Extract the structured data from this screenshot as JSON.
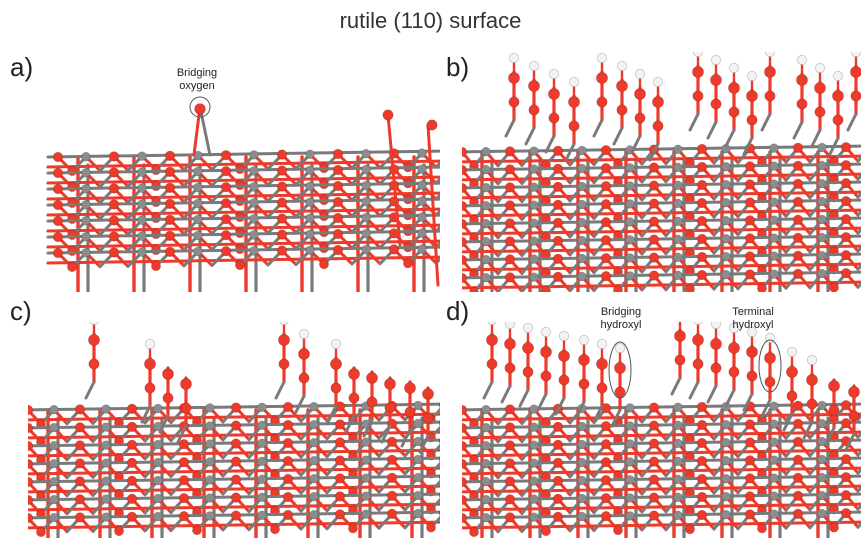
{
  "title": "rutile (110) surface",
  "panels": [
    {
      "label": "a)",
      "variant": "bare"
    },
    {
      "label": "b)",
      "variant": "full-hydroxyl"
    },
    {
      "label": "c)",
      "variant": "partial-hydroxyl"
    },
    {
      "label": "d)",
      "variant": "mixed-hydroxyl"
    }
  ],
  "annotations": {
    "bridging_oxygen": "Bridging\noxygen",
    "bridging_hydroxyl": "Bridging\nhydroxyl",
    "terminal_hydroxyl": "Terminal\nhydroxyl"
  },
  "colors": {
    "oxygen": "#ee3a2a",
    "titanium": "#8c8c8c",
    "hydrogen": "#f2f2f2",
    "bond_ti": "#7a7a7a"
  }
}
